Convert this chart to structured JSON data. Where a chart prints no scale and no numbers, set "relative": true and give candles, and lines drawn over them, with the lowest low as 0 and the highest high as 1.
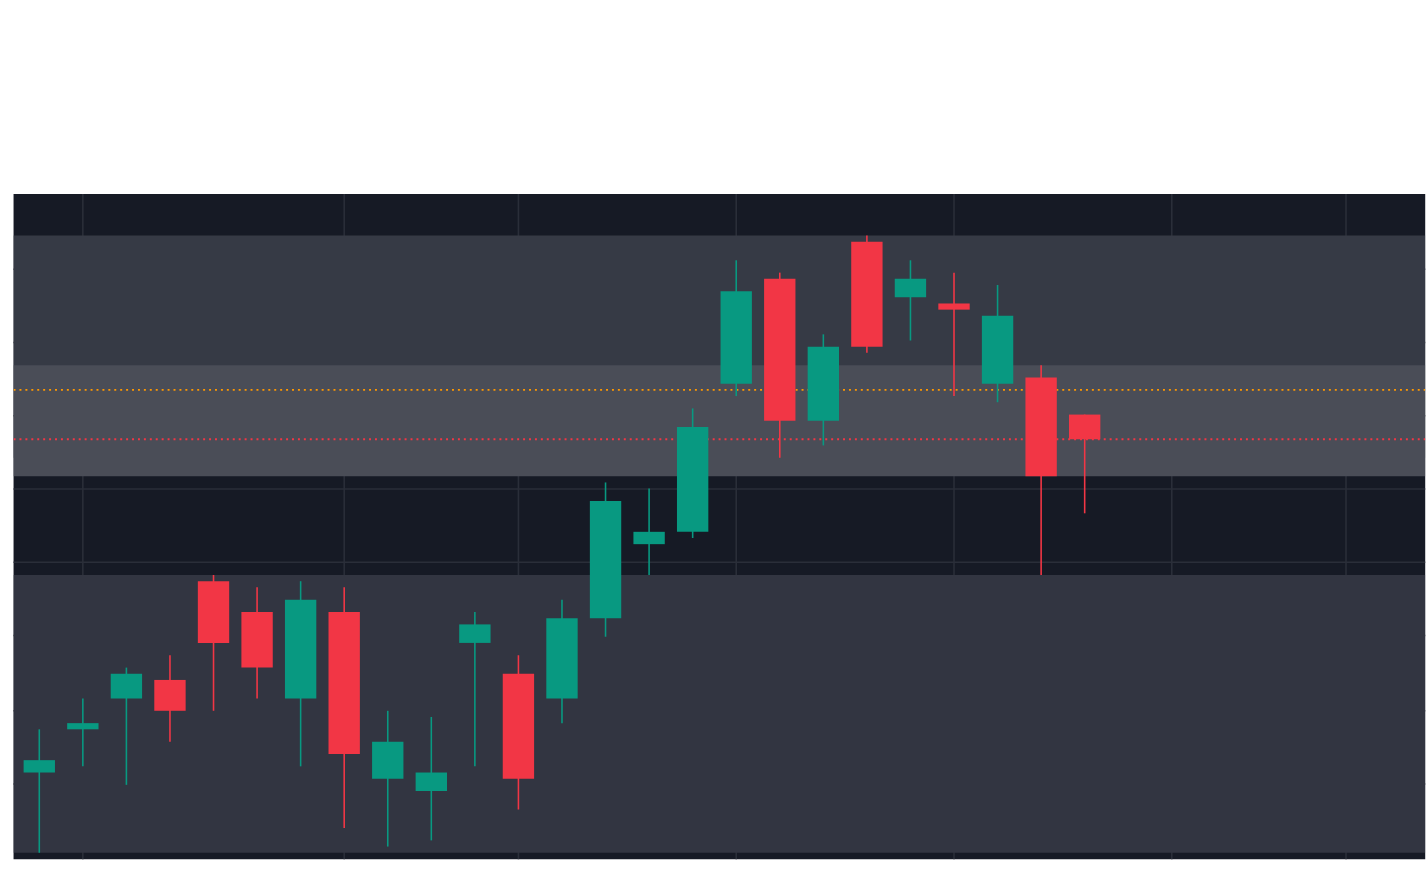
{
  "chart_data": {
    "type": "candlestick",
    "relative": true,
    "grid": true,
    "tick_labels": false,
    "categories": [
      null,
      null,
      null,
      null,
      null,
      null,
      null,
      null,
      null,
      null,
      null,
      null,
      null,
      null,
      null,
      null,
      null,
      null,
      null,
      null,
      null,
      null,
      null,
      null,
      null
    ],
    "ohlc": [
      [
        0.13,
        0.2,
        0,
        0.15
      ],
      [
        0.2,
        0.25,
        0.14,
        0.21
      ],
      [
        0.25,
        0.3,
        0.11,
        0.29
      ],
      [
        0.28,
        0.32,
        0.18,
        0.23
      ],
      [
        0.44,
        0.45,
        0.23,
        0.34
      ],
      [
        0.39,
        0.43,
        0.25,
        0.3
      ],
      [
        0.25,
        0.44,
        0.14,
        0.41
      ],
      [
        0.39,
        0.43,
        0.04,
        0.16
      ],
      [
        0.12,
        0.23,
        0.01,
        0.18
      ],
      [
        0.1,
        0.22,
        0.02,
        0.13
      ],
      [
        0.34,
        0.39,
        0.14,
        0.37
      ],
      [
        0.29,
        0.32,
        0.07,
        0.12
      ],
      [
        0.25,
        0.41,
        0.21,
        0.38
      ],
      [
        0.38,
        0.6,
        0.35,
        0.57
      ],
      [
        0.5,
        0.59,
        0.45,
        0.52
      ],
      [
        0.52,
        0.72,
        0.51,
        0.69
      ],
      [
        0.76,
        0.96,
        0.74,
        0.91
      ],
      [
        0.93,
        0.94,
        0.64,
        0.7
      ],
      [
        0.7,
        0.84,
        0.66,
        0.82
      ],
      [
        0.99,
        1,
        0.81,
        0.82
      ],
      [
        0.9,
        0.96,
        0.83,
        0.93
      ],
      [
        0.89,
        0.94,
        0.74,
        0.88
      ],
      [
        0.76,
        0.92,
        0.73,
        0.87
      ],
      [
        0.77,
        0.79,
        0.45,
        0.61
      ],
      [
        0.71,
        0.71,
        0.55,
        0.67
      ]
    ],
    "colors": [
      "#089981",
      "#089981",
      "#089981",
      "#f23645",
      "#f23645",
      "#f23645",
      "#089981",
      "#f23645",
      "#089981",
      "#089981",
      "#089981",
      "#f23645",
      "#089981",
      "#089981",
      "#089981",
      "#089981",
      "#089981",
      "#f23645",
      "#089981",
      "#f23645",
      "#089981",
      "#f23645",
      "#089981",
      "#f23645",
      "#f23645"
    ],
    "bands": [
      {
        "axis": "y",
        "from": 0,
        "to": 0.45,
        "color": "#323541"
      },
      {
        "axis": "y",
        "from": 0.64,
        "to": 1,
        "color": "#363a45"
      },
      {
        "axis": "y",
        "from": 0.61,
        "to": 0.79,
        "color": "#4a4d57"
      }
    ],
    "ref_lines": [
      {
        "axis": "y",
        "value": 0.75,
        "color": "#ff9800",
        "line_style": "dotted"
      },
      {
        "axis": "y",
        "value": 0.67,
        "color": "#f23645",
        "line_style": "dotted"
      }
    ]
  }
}
